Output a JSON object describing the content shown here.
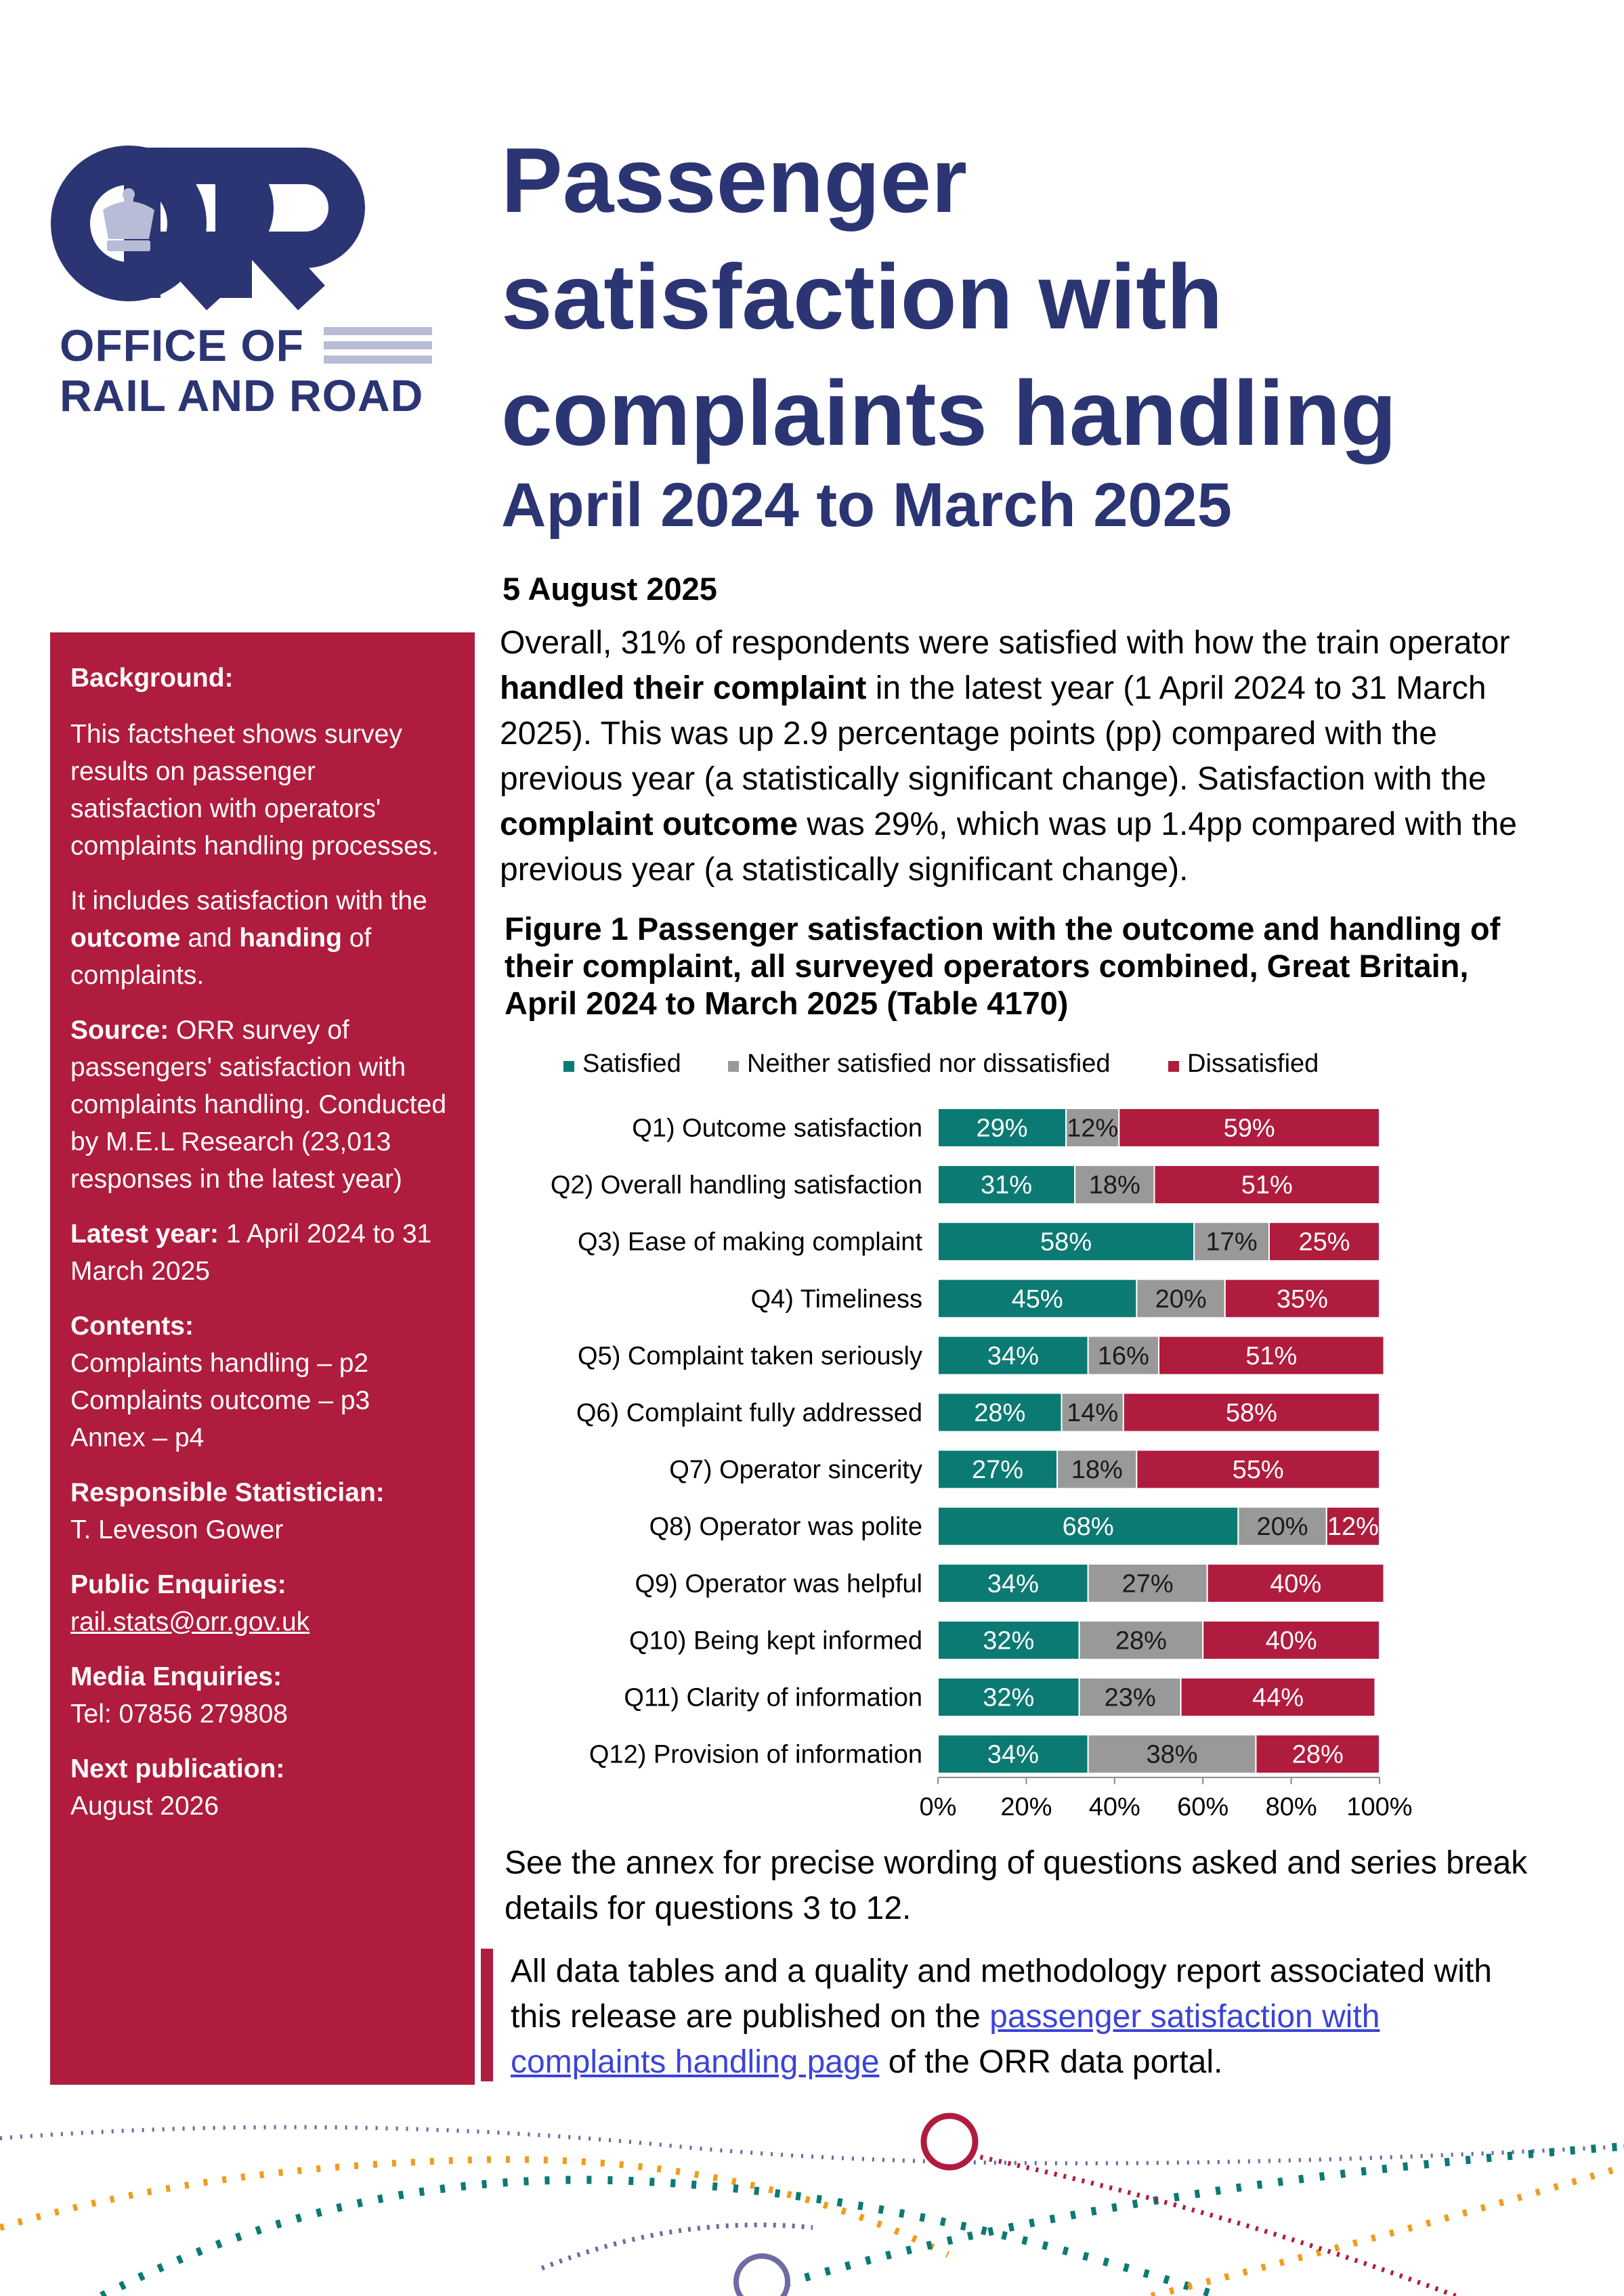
{
  "logo": {
    "letters": "ORR",
    "line1": "OFFICE OF",
    "line2": "RAIL AND ROAD"
  },
  "title": {
    "line1": "Passenger",
    "line2": "satisfaction with",
    "line3": "complaints handling",
    "subtitle": "April 2024 to March 2025"
  },
  "date": "5 August 2025",
  "intro": {
    "p1": "Overall, 31% of respondents were satisfied with how the train operator ",
    "b1": "handled their complaint",
    "p2": " in the latest year (1 April 2024 to 31 March 2025). This was up 2.9 percentage points (pp) compared with the previous year (a statistically significant change). Satisfaction with the ",
    "b2": "complaint outcome",
    "p3": " was 29%, which was up 1.4pp compared with the previous year (a statistically significant change)."
  },
  "sidebar": {
    "background_head": "Background:",
    "background_p1": "This factsheet shows survey results on passenger satisfaction with operators' complaints handling processes.",
    "background_p2a": "It includes satisfaction with the ",
    "background_p2b": "outcome",
    "background_p2c": " and ",
    "background_p2d": "handing",
    "background_p2e": " of complaints.",
    "source_head": "Source:",
    "source_text": " ORR survey of passengers' satisfaction with complaints handling. Conducted by M.E.L Research (23,013 responses in the latest year)",
    "latest_head": "Latest year:",
    "latest_text": " 1 April 2024 to 31 March 2025",
    "contents_head": "Contents:",
    "contents_items": [
      "Complaints handling – p2",
      "Complaints outcome – p3",
      "Annex – p4"
    ],
    "statistician_head": "Responsible Statistician:",
    "statistician_name": "T. Leveson Gower",
    "public_head": "Public Enquiries:",
    "public_email": "rail.stats@orr.gov.uk",
    "media_head": "Media Enquiries:",
    "media_tel": "Tel: 07856 279808",
    "next_head": "Next publication:",
    "next_text": "August 2026"
  },
  "figure_title": "Figure 1  Passenger satisfaction with the outcome and handling of their complaint, all surveyed operators combined, Great Britain, April 2024 to March 2025 (Table 4170)",
  "chart_data": {
    "type": "bar",
    "orientation": "horizontal",
    "stacked": true,
    "categories": [
      "Q1) Outcome satisfaction",
      "Q2) Overall handling satisfaction",
      "Q3) Ease of making complaint",
      "Q4) Timeliness",
      "Q5) Complaint taken seriously",
      "Q6) Complaint fully addressed",
      "Q7) Operator sincerity",
      "Q8) Operator was polite",
      "Q9) Operator was helpful",
      "Q10) Being kept informed",
      "Q11) Clarity of information",
      "Q12) Provision of information"
    ],
    "series": [
      {
        "name": "Satisfied",
        "color": "#0b7a73",
        "values": [
          29,
          31,
          58,
          45,
          34,
          28,
          27,
          68,
          34,
          32,
          32,
          34
        ]
      },
      {
        "name": "Neither satisfied nor dissatisfied",
        "color": "#999999",
        "values": [
          12,
          18,
          17,
          20,
          16,
          14,
          18,
          20,
          27,
          28,
          23,
          38
        ]
      },
      {
        "name": "Dissatisfied",
        "color": "#b01c3d",
        "values": [
          59,
          51,
          25,
          35,
          51,
          58,
          55,
          12,
          40,
          40,
          44,
          28
        ]
      }
    ],
    "xticks": [
      "0%",
      "20%",
      "40%",
      "60%",
      "80%",
      "100%"
    ],
    "xlim": [
      0,
      100
    ],
    "legend": "top"
  },
  "after": "See the annex for precise wording of questions asked and series break details for questions 3 to 12.",
  "callout": {
    "pre": "All data tables and a quality and methodology report associated with this release are published on the ",
    "link": "passenger satisfaction with complaints handling page",
    "post": " of the ORR data portal."
  }
}
